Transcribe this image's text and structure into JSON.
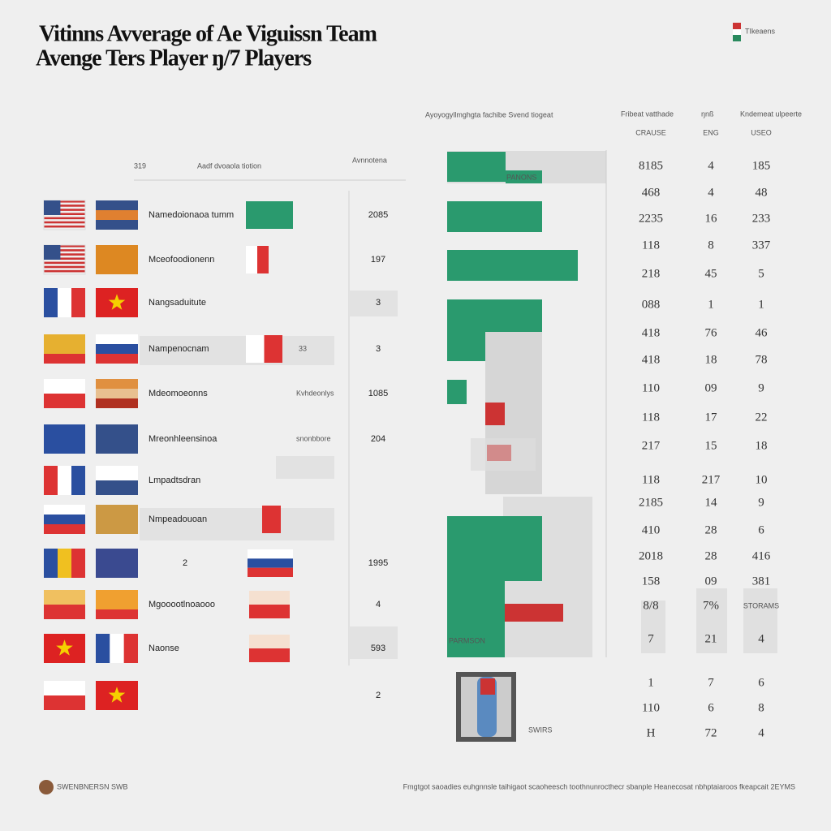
{
  "header": {
    "title_lines": [
      "Vitinns Avverage of Ae Viguissn Team",
      "Avenge Ters Player  ŋ/7 Players"
    ],
    "logo_text": "TIkeaens"
  },
  "left_table": {
    "headers": [
      "319",
      "Aadf dvoaola tiotion",
      "Avnnotena"
    ],
    "rows": [
      {
        "label": "Namedoionaoa tumm",
        "value": "2085"
      },
      {
        "label": "Mceofoodionenn",
        "value": "197"
      },
      {
        "label": "Nangsaduitute",
        "value": "3"
      },
      {
        "label": "Nampenocnam",
        "note": "33",
        "value": "3"
      },
      {
        "label": "Mdeomoeonns",
        "note": "Kvhdeonlys",
        "value": "1085"
      },
      {
        "label": "Mreonhleensinoa",
        "note": "snonbbore",
        "value": "204"
      },
      {
        "label": "Lmpadtsdran"
      },
      {
        "label": "Nmpeadouoan"
      },
      {
        "label": "2",
        "value": "1995"
      },
      {
        "label": "Mgooootlnoaooo",
        "value": "4"
      },
      {
        "label": "Naonse",
        "value": "593"
      },
      {
        "value": "2"
      }
    ]
  },
  "chart": {
    "title": "Ayoyogyllmghgta fachibe Svend tiogeat",
    "bar_labels": [
      "PANONS",
      "PARMSON"
    ]
  },
  "right_table": {
    "headers": [
      "Fribeat vatthade",
      "ŋnß",
      "Kndemeat ulpeerte"
    ],
    "subheaders": [
      "CRAUSE",
      "ENG",
      "USEO"
    ],
    "rows": [
      [
        "8185",
        "4",
        "185"
      ],
      [
        "468",
        "4",
        "48"
      ],
      [
        "2235",
        "16",
        "233"
      ],
      [
        "118",
        "8",
        "337"
      ],
      [
        "218",
        "45",
        "5"
      ],
      [
        "088",
        "1",
        "1"
      ],
      [
        "418",
        "76",
        "46"
      ],
      [
        "418",
        "18",
        "78"
      ],
      [
        "110",
        "09",
        "9"
      ],
      [
        "118",
        "17",
        "22"
      ],
      [
        "217",
        "15",
        "18"
      ],
      [
        "118",
        "217",
        "10"
      ],
      [
        "2185",
        "14",
        "9"
      ],
      [
        "410",
        "28",
        "6"
      ],
      [
        "2018",
        "28",
        "416"
      ],
      [
        "158",
        "09",
        "381"
      ],
      [
        "8/8",
        "7%",
        "STORAMS"
      ],
      [
        "7",
        "21",
        "4"
      ],
      [
        "1",
        "7",
        "6"
      ],
      [
        "110",
        "6",
        "8"
      ],
      [
        "H",
        "72",
        "4"
      ]
    ]
  },
  "device": {
    "label": "SWIRS"
  },
  "footer": {
    "left": "SWENBNERSN SWB",
    "right": "Fmgtgot saoadies euhgnnsle taihigaot scaoheesch toothnunrocthecr sbanple Heanecosat nbhptaiaroos fkeapcait 2EYMS"
  }
}
